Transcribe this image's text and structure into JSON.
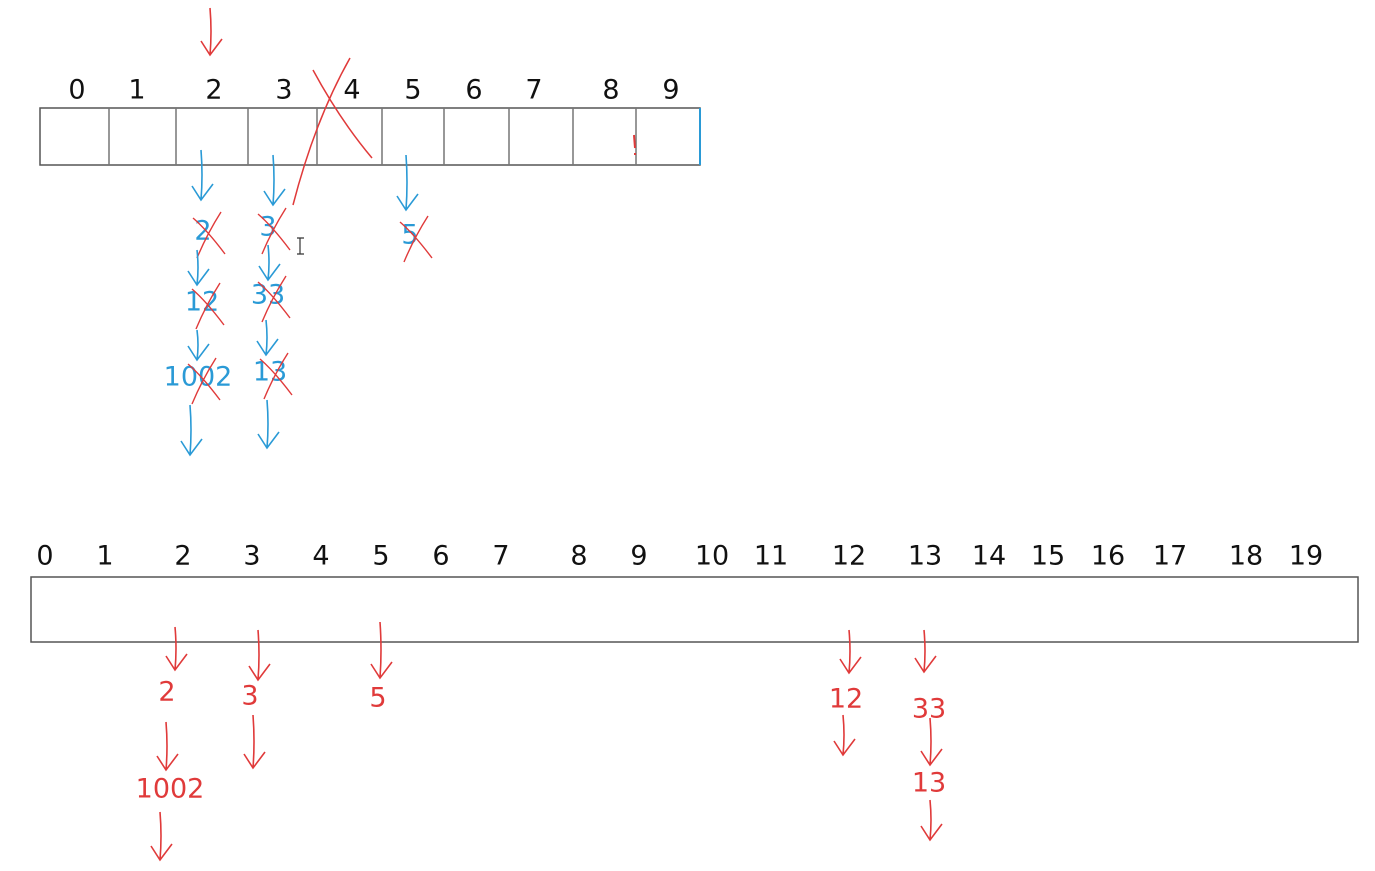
{
  "top": {
    "indices": [
      0,
      1,
      2,
      3,
      4,
      5,
      6,
      7,
      8,
      9
    ],
    "chains": [
      [
        2,
        12,
        1002
      ],
      [
        3,
        33,
        13
      ],
      [
        5
      ]
    ]
  },
  "bottom": {
    "indices": [
      0,
      1,
      2,
      3,
      4,
      5,
      6,
      7,
      8,
      9,
      10,
      11,
      12,
      13,
      14,
      15,
      16,
      17,
      18,
      19
    ],
    "chains": [
      [
        2,
        1002
      ],
      [
        3
      ],
      [
        5
      ],
      [
        12
      ],
      [
        33,
        13
      ]
    ]
  }
}
